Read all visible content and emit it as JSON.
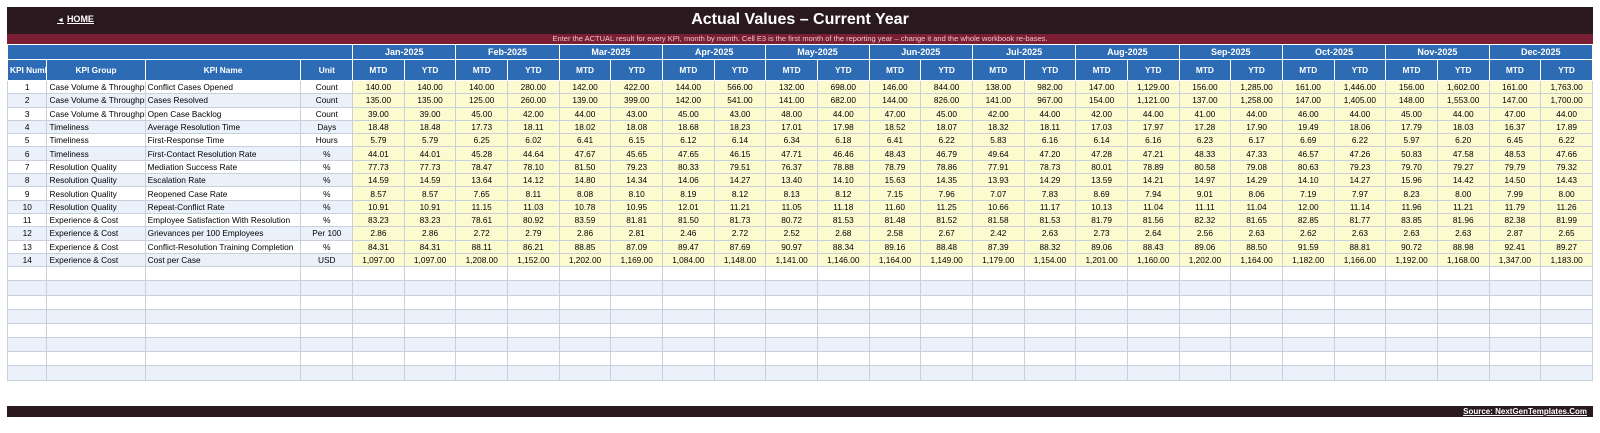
{
  "header": {
    "home_label": "HOME",
    "title": "Actual Values  –  Current Year",
    "instruction": "Enter the ACTUAL result for every KPI, month by month. Cell E3 is the first month of the reporting year – change it and the whole workbook re-bases."
  },
  "columns": {
    "kpi_number": "KPI Number",
    "kpi_group": "KPI Group",
    "kpi_name": "KPI Name",
    "unit": "Unit",
    "mtd": "MTD",
    "ytd": "YTD"
  },
  "months": [
    "Jan-2025",
    "Feb-2025",
    "Mar-2025",
    "Apr-2025",
    "May-2025",
    "Jun-2025",
    "Jul-2025",
    "Aug-2025",
    "Sep-2025",
    "Oct-2025",
    "Nov-2025",
    "Dec-2025"
  ],
  "rows": [
    {
      "num": "1",
      "group": "Case Volume & Throughput",
      "name": "Conflict Cases Opened",
      "unit": "Count",
      "values": [
        "140.00",
        "140.00",
        "140.00",
        "280.00",
        "142.00",
        "422.00",
        "144.00",
        "566.00",
        "132.00",
        "698.00",
        "146.00",
        "844.00",
        "138.00",
        "982.00",
        "147.00",
        "1,129.00",
        "156.00",
        "1,285.00",
        "161.00",
        "1,446.00",
        "156.00",
        "1,602.00",
        "161.00",
        "1,763.00"
      ]
    },
    {
      "num": "2",
      "group": "Case Volume & Throughput",
      "name": "Cases Resolved",
      "unit": "Count",
      "values": [
        "135.00",
        "135.00",
        "125.00",
        "260.00",
        "139.00",
        "399.00",
        "142.00",
        "541.00",
        "141.00",
        "682.00",
        "144.00",
        "826.00",
        "141.00",
        "967.00",
        "154.00",
        "1,121.00",
        "137.00",
        "1,258.00",
        "147.00",
        "1,405.00",
        "148.00",
        "1,553.00",
        "147.00",
        "1,700.00"
      ]
    },
    {
      "num": "3",
      "group": "Case Volume & Throughput",
      "name": "Open Case Backlog",
      "unit": "Count",
      "values": [
        "39.00",
        "39.00",
        "45.00",
        "42.00",
        "44.00",
        "43.00",
        "45.00",
        "43.00",
        "48.00",
        "44.00",
        "47.00",
        "45.00",
        "42.00",
        "44.00",
        "42.00",
        "44.00",
        "41.00",
        "44.00",
        "46.00",
        "44.00",
        "45.00",
        "44.00",
        "47.00",
        "44.00"
      ]
    },
    {
      "num": "4",
      "group": "Timeliness",
      "name": "Average Resolution Time",
      "unit": "Days",
      "values": [
        "18.48",
        "18.48",
        "17.73",
        "18.11",
        "18.02",
        "18.08",
        "18.68",
        "18.23",
        "17.01",
        "17.98",
        "18.52",
        "18.07",
        "18.32",
        "18.11",
        "17.03",
        "17.97",
        "17.28",
        "17.90",
        "19.49",
        "18.06",
        "17.79",
        "18.03",
        "16.37",
        "17.89"
      ]
    },
    {
      "num": "5",
      "group": "Timeliness",
      "name": "First-Response Time",
      "unit": "Hours",
      "values": [
        "5.79",
        "5.79",
        "6.25",
        "6.02",
        "6.41",
        "6.15",
        "6.12",
        "6.14",
        "6.34",
        "6.18",
        "6.41",
        "6.22",
        "5.83",
        "6.16",
        "6.14",
        "6.16",
        "6.23",
        "6.17",
        "6.69",
        "6.22",
        "5.97",
        "6.20",
        "6.45",
        "6.22"
      ]
    },
    {
      "num": "6",
      "group": "Timeliness",
      "name": "First-Contact Resolution Rate",
      "unit": "%",
      "values": [
        "44.01",
        "44.01",
        "45.28",
        "44.64",
        "47.67",
        "45.65",
        "47.65",
        "46.15",
        "47.71",
        "46.46",
        "48.43",
        "46.79",
        "49.64",
        "47.20",
        "47.28",
        "47.21",
        "48.33",
        "47.33",
        "46.57",
        "47.26",
        "50.83",
        "47.58",
        "48.53",
        "47.66"
      ]
    },
    {
      "num": "7",
      "group": "Resolution Quality",
      "name": "Mediation Success Rate",
      "unit": "%",
      "values": [
        "77.73",
        "77.73",
        "78.47",
        "78.10",
        "81.50",
        "79.23",
        "80.33",
        "79.51",
        "76.37",
        "78.88",
        "78.79",
        "78.86",
        "77.91",
        "78.73",
        "80.01",
        "78.89",
        "80.58",
        "79.08",
        "80.63",
        "79.23",
        "79.70",
        "79.27",
        "79.79",
        "79.32"
      ]
    },
    {
      "num": "8",
      "group": "Resolution Quality",
      "name": "Escalation Rate",
      "unit": "%",
      "values": [
        "14.59",
        "14.59",
        "13.64",
        "14.12",
        "14.80",
        "14.34",
        "14.06",
        "14.27",
        "13.40",
        "14.10",
        "15.63",
        "14.35",
        "13.93",
        "14.29",
        "13.59",
        "14.21",
        "14.97",
        "14.29",
        "14.10",
        "14.27",
        "15.96",
        "14.42",
        "14.50",
        "14.43"
      ]
    },
    {
      "num": "9",
      "group": "Resolution Quality",
      "name": "Reopened Case Rate",
      "unit": "%",
      "values": [
        "8.57",
        "8.57",
        "7.65",
        "8.11",
        "8.08",
        "8.10",
        "8.19",
        "8.12",
        "8.13",
        "8.12",
        "7.15",
        "7.96",
        "7.07",
        "7.83",
        "8.69",
        "7.94",
        "9.01",
        "8.06",
        "7.19",
        "7.97",
        "8.23",
        "8.00",
        "7.99",
        "8.00"
      ]
    },
    {
      "num": "10",
      "group": "Resolution Quality",
      "name": "Repeat-Conflict Rate",
      "unit": "%",
      "values": [
        "10.91",
        "10.91",
        "11.15",
        "11.03",
        "10.78",
        "10.95",
        "12.01",
        "11.21",
        "11.05",
        "11.18",
        "11.60",
        "11.25",
        "10.66",
        "11.17",
        "10.13",
        "11.04",
        "11.11",
        "11.04",
        "12.00",
        "11.14",
        "11.96",
        "11.21",
        "11.79",
        "11.26"
      ]
    },
    {
      "num": "11",
      "group": "Experience & Cost",
      "name": "Employee Satisfaction With Resolution",
      "unit": "%",
      "values": [
        "83.23",
        "83.23",
        "78.61",
        "80.92",
        "83.59",
        "81.81",
        "81.50",
        "81.73",
        "80.72",
        "81.53",
        "81.48",
        "81.52",
        "81.58",
        "81.53",
        "81.79",
        "81.56",
        "82.32",
        "81.65",
        "82.85",
        "81.77",
        "83.85",
        "81.96",
        "82.38",
        "81.99"
      ]
    },
    {
      "num": "12",
      "group": "Experience & Cost",
      "name": "Grievances per 100 Employees",
      "unit": "Per 100",
      "values": [
        "2.86",
        "2.86",
        "2.72",
        "2.79",
        "2.86",
        "2.81",
        "2.46",
        "2.72",
        "2.52",
        "2.68",
        "2.58",
        "2.67",
        "2.42",
        "2.63",
        "2.73",
        "2.64",
        "2.56",
        "2.63",
        "2.62",
        "2.63",
        "2.63",
        "2.63",
        "2.87",
        "2.65"
      ]
    },
    {
      "num": "13",
      "group": "Experience & Cost",
      "name": "Conflict-Resolution Training Completion",
      "unit": "%",
      "values": [
        "84.31",
        "84.31",
        "88.11",
        "86.21",
        "88.85",
        "87.09",
        "89.47",
        "87.69",
        "90.97",
        "88.34",
        "89.16",
        "88.48",
        "87.39",
        "88.32",
        "89.06",
        "88.43",
        "89.06",
        "88.50",
        "91.59",
        "88.81",
        "90.72",
        "88.98",
        "92.41",
        "89.27"
      ]
    },
    {
      "num": "14",
      "group": "Experience & Cost",
      "name": "Cost per Case",
      "unit": "USD",
      "values": [
        "1,097.00",
        "1,097.00",
        "1,208.00",
        "1,152.00",
        "1,202.00",
        "1,169.00",
        "1,084.00",
        "1,148.00",
        "1,141.00",
        "1,146.00",
        "1,164.00",
        "1,149.00",
        "1,179.00",
        "1,154.00",
        "1,201.00",
        "1,160.00",
        "1,202.00",
        "1,164.00",
        "1,182.00",
        "1,166.00",
        "1,192.00",
        "1,168.00",
        "1,347.00",
        "1,183.00"
      ]
    }
  ],
  "empty_row_count": 8,
  "footer": {
    "source": "Source: NextGenTemplates.Com"
  },
  "colors": {
    "title_bg": "#2a1a1f",
    "instruction_bg": "#7b1e34",
    "header_bg": "#2d6cb5",
    "value_bg": "#fbfbcf",
    "alt_row_bg": "#eaf1fa"
  }
}
